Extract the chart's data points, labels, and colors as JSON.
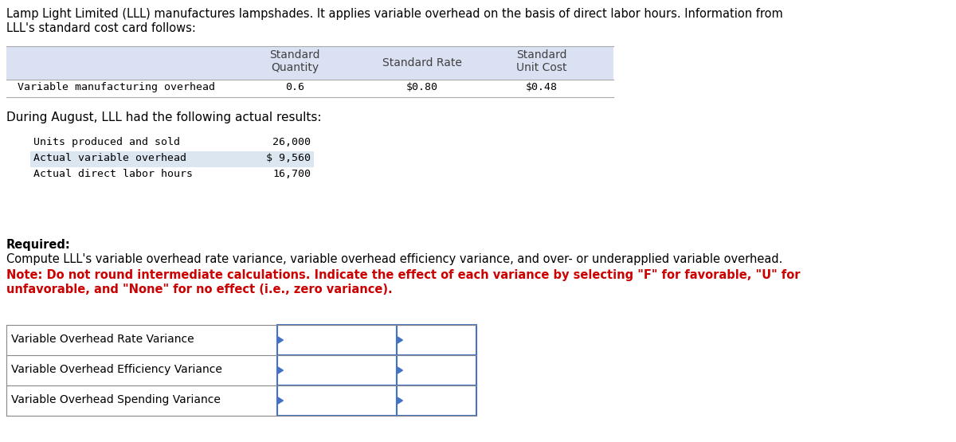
{
  "intro_text_line1": "Lamp Light Limited (LLL) manufactures lampshades. It applies variable overhead on the basis of direct labor hours. Information from",
  "intro_text_line2": "LLL's standard cost card follows:",
  "table1_row1_col1": "Variable manufacturing overhead",
  "table1_row1_col2": "0.6",
  "table1_row1_col3": "$0.80",
  "table1_row1_col4": "$0.48",
  "actual_header": "During August, LLL had the following actual results:",
  "actual_rows": [
    [
      "Units produced and sold",
      "26,000"
    ],
    [
      "Actual variable overhead",
      "$ 9,560"
    ],
    [
      "Actual direct labor hours",
      "16,700"
    ]
  ],
  "actual_row_bg": [
    "#ffffff",
    "#dce6f1",
    "#ffffff"
  ],
  "required_label": "Required:",
  "required_text": "Compute LLL's variable overhead rate variance, variable overhead efficiency variance, and over- or underapplied variable overhead.",
  "note_line1": "Note: Do not round intermediate calculations. Indicate the effect of each variance by selecting \"F\" for favorable, \"U\" for",
  "note_line2": "unfavorable, and \"None\" for no effect (i.e., zero variance).",
  "variance_rows": [
    "Variable Overhead Rate Variance",
    "Variable Overhead Efficiency Variance",
    "Variable Overhead Spending Variance"
  ],
  "bg_color": "#ffffff",
  "table_header_bg": "#d9e1f2",
  "border_color": "#4472c4",
  "text_color_black": "#000000",
  "text_color_gray": "#404040",
  "text_color_red": "#cc0000",
  "mono_font": "DejaVu Sans Mono",
  "sans_font": "DejaVu Sans",
  "figw": 12.0,
  "figh": 5.55,
  "dpi": 100
}
